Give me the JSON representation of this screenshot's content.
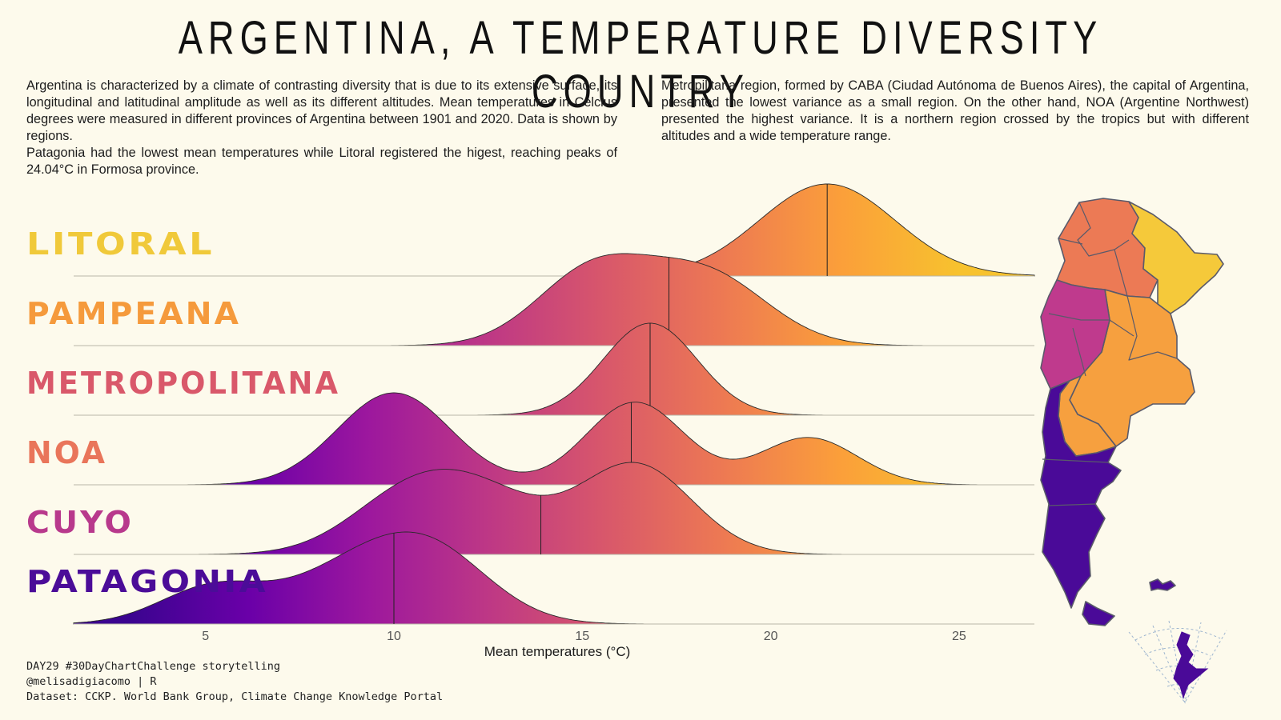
{
  "title": "ARGENTINA, A TEMPERATURE DIVERSITY COUNTRY",
  "intro_left": [
    "Argentina is characterized by a climate of contrasting diversity that is due to its extensive surface, its longitudinal and latitudinal amplitude as well as its different altitudes. Mean temperatures in Celcius degrees were measured in different provinces of Argentina between 1901 and 2020. Data is shown by regions.",
    "Patagonia had the lowest mean temperatures while Litoral registered the higest, reaching peaks of 24.04°C in Formosa province."
  ],
  "intro_right": "Metropilitana region, formed by CABA (Ciudad Autónoma de Buenos Aires), the capital of Argentina, presented the lowest variance as a small region. On the other hand, NOA (Argentine Northwest) presented the highest variance. It is a northern region crossed by the tropics but with different altitudes and a wide temperature range.",
  "footer": [
    "DAY29 #30DayChartChallenge storytelling",
    "@melisadigiacomo | R",
    "Dataset: CCKP. World Bank Group, Climate Change Knowledge Portal"
  ],
  "colors": {
    "background": "#fdfaec",
    "litoral": "#f0c93a",
    "pampeana": "#f59a3c",
    "metropolitana": "#d9586a",
    "noa": "#e9755a",
    "cuyo": "#b5338e",
    "patagonia": "#4b0c98",
    "gradient": [
      "#3b0490",
      "#6a00a8",
      "#9c179e",
      "#bd3786",
      "#d8576b",
      "#ed7953",
      "#fb9f3a",
      "#f7c22e"
    ]
  },
  "map": {
    "description_icon": "argentina-map-icon",
    "regions_colored": [
      "NOA",
      "Litoral",
      "Cuyo",
      "Pampeana",
      "Patagonia"
    ]
  },
  "chart_data": {
    "type": "ridgeline",
    "xlabel": "Mean temperatures (°C)",
    "xlim": [
      1.5,
      27
    ],
    "xticks": [
      5,
      10,
      15,
      20,
      25
    ],
    "series": [
      {
        "name": "LITORAL",
        "label_color": "#f0c93a",
        "median": 21.5,
        "components": [
          {
            "mean": 21.5,
            "sd": 1.8,
            "weight": 1
          }
        ]
      },
      {
        "name": "PAMPEANA",
        "label_color": "#f59a3c",
        "median": 17.3,
        "components": [
          {
            "mean": 15.3,
            "sd": 1.5,
            "weight": 0.5
          },
          {
            "mean": 18.3,
            "sd": 1.6,
            "weight": 0.5
          }
        ]
      },
      {
        "name": "METROPOLITANA",
        "label_color": "#d9586a",
        "median": 16.8,
        "components": [
          {
            "mean": 16.8,
            "sd": 1.25,
            "weight": 1
          }
        ]
      },
      {
        "name": "NOA",
        "label_color": "#e9755a",
        "median": 16.3,
        "components": [
          {
            "mean": 10.0,
            "sd": 1.5,
            "weight": 0.45
          },
          {
            "mean": 16.4,
            "sd": 1.3,
            "weight": 0.35
          },
          {
            "mean": 21.0,
            "sd": 1.3,
            "weight": 0.2
          }
        ]
      },
      {
        "name": "CUYO",
        "label_color": "#b8398c",
        "median": 13.9,
        "components": [
          {
            "mean": 10.5,
            "sd": 1.6,
            "weight": 0.33
          },
          {
            "mean": 12.6,
            "sd": 1.5,
            "weight": 0.22
          },
          {
            "mean": 16.4,
            "sd": 1.5,
            "weight": 0.45
          }
        ]
      },
      {
        "name": "PATAGONIA",
        "label_color": "#4b0c98",
        "median": 10.0,
        "components": [
          {
            "mean": 5.2,
            "sd": 1.4,
            "weight": 0.22
          },
          {
            "mean": 8.6,
            "sd": 1.6,
            "weight": 0.28
          },
          {
            "mean": 10.9,
            "sd": 1.6,
            "weight": 0.5
          }
        ]
      }
    ]
  }
}
